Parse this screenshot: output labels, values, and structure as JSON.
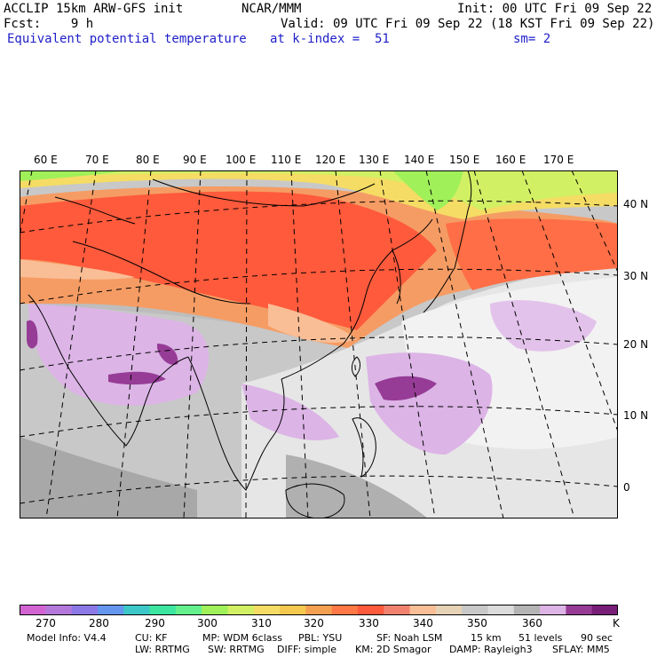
{
  "header": {
    "model_line": "ACCLIP 15km ARW-GFS init",
    "org": "NCAR/MMM",
    "init": "Init: 00 UTC Fri 09 Sep 22",
    "fcst": "Fcst:    9 h",
    "valid": "Valid: 09 UTC Fri 09 Sep 22 (18 KST Fri 09 Sep 22)",
    "field": "Equivalent potential temperature",
    "level": "at k-index =  51",
    "smooth": "sm= 2"
  },
  "map": {
    "lon_labels": [
      "60 E",
      "70 E",
      "80 E",
      "90 E",
      "100 E",
      "110 E",
      "120 E",
      "130 E",
      "140 E",
      "150 E",
      "160 E",
      "170 E"
    ],
    "lat_labels": [
      "40 N",
      "30 N",
      "20 N",
      "10 N",
      "0"
    ],
    "field_colors": {
      "grey_dark": "#a0a0a0",
      "grey": "#bcbcbc",
      "grey_light": "#dcdcdc",
      "white": "#f0f0f0",
      "lavender": "#dcb4e6",
      "purple": "#963c96",
      "deep_purple": "#781e78",
      "red": "#ff5a3c",
      "orange_red": "#ff7846",
      "orange": "#f59c64",
      "peach": "#fabe96",
      "yellow": "#f5dc64",
      "yellow_green": "#d2f064",
      "green": "#a0f05a"
    }
  },
  "colorbar": {
    "colors": [
      "#d264d2",
      "#b478dc",
      "#8c78e6",
      "#6496f0",
      "#3cc8c8",
      "#3ce6a0",
      "#64f08c",
      "#a0f05a",
      "#d2f064",
      "#f5dc64",
      "#f5c850",
      "#f5a050",
      "#ff7846",
      "#ff5a3c",
      "#f0826e",
      "#fabe96",
      "#e6d2b4",
      "#c8c8c8",
      "#dcdcdc",
      "#b4b4b4",
      "#dcb4e6",
      "#963c96",
      "#781e78"
    ],
    "labels": [
      "270",
      "280",
      "290",
      "300",
      "310",
      "320",
      "330",
      "340",
      "350",
      "360"
    ],
    "unit": "K"
  },
  "footer": {
    "model_info": "Model Info: V4.4",
    "cu": "CU: KF",
    "mp": "MP: WDM 6class",
    "pbl": "PBL: YSU",
    "sf": "SF: Noah LSM",
    "res": "15 km",
    "levels": "51 levels",
    "dt": "90 sec",
    "lw": "LW: RRTMG",
    "sw": "SW: RRTMG",
    "diff": "DIFF: simple",
    "km": "KM: 2D Smagor",
    "damp": "DAMP: Rayleigh3",
    "sflay": "SFLAY: MM5"
  }
}
